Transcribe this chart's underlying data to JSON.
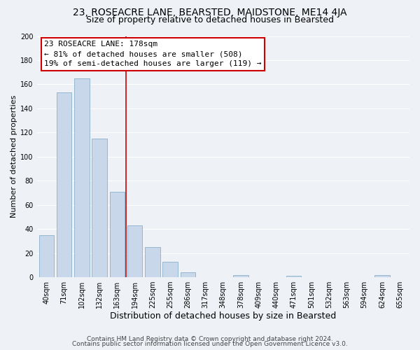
{
  "title1": "23, ROSEACRE LANE, BEARSTED, MAIDSTONE, ME14 4JA",
  "title2": "Size of property relative to detached houses in Bearsted",
  "xlabel": "Distribution of detached houses by size in Bearsted",
  "ylabel": "Number of detached properties",
  "bar_labels": [
    "40sqm",
    "71sqm",
    "102sqm",
    "132sqm",
    "163sqm",
    "194sqm",
    "225sqm",
    "255sqm",
    "286sqm",
    "317sqm",
    "348sqm",
    "378sqm",
    "409sqm",
    "440sqm",
    "471sqm",
    "501sqm",
    "532sqm",
    "563sqm",
    "594sqm",
    "624sqm",
    "655sqm"
  ],
  "bar_values": [
    35,
    153,
    165,
    115,
    71,
    43,
    25,
    13,
    4,
    0,
    0,
    2,
    0,
    0,
    1,
    0,
    0,
    0,
    0,
    2,
    0
  ],
  "bar_color": "#c8d8ea",
  "bar_edge_color": "#8ab0cc",
  "annotation_title": "23 ROSEACRE LANE: 178sqm",
  "annotation_line1": "← 81% of detached houses are smaller (508)",
  "annotation_line2": "19% of semi-detached houses are larger (119) →",
  "annotation_box_color": "#ffffff",
  "annotation_box_edge_color": "#cc0000",
  "vline_color": "#cc0000",
  "ylim": [
    0,
    200
  ],
  "yticks": [
    0,
    20,
    40,
    60,
    80,
    100,
    120,
    140,
    160,
    180,
    200
  ],
  "footer1": "Contains HM Land Registry data © Crown copyright and database right 2024.",
  "footer2": "Contains public sector information licensed under the Open Government Licence v3.0.",
  "bg_color": "#eef2f7",
  "plot_bg_color": "#eef2f7",
  "grid_color": "#ffffff",
  "title1_fontsize": 10,
  "title2_fontsize": 9,
  "xlabel_fontsize": 9,
  "ylabel_fontsize": 8,
  "tick_fontsize": 7,
  "annotation_fontsize": 8,
  "footer_fontsize": 6.5
}
